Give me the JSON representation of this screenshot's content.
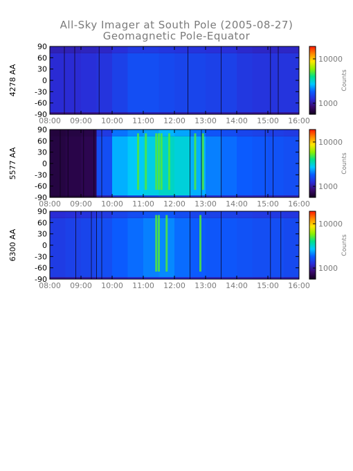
{
  "title": {
    "line1": "All-Sky Imager at South Pole (2005-08-27)",
    "line2": "Geomagnetic Pole-Equator"
  },
  "colors": {
    "axis_text": "#7a7a7a",
    "label_text": "#000000",
    "bar_stops": [
      "#14001e",
      "#3a0a6e",
      "#2a2cd6",
      "#0a5cff",
      "#00c8ff",
      "#00e08a",
      "#8cf000",
      "#ffe600",
      "#ff8a00",
      "#ff1a00"
    ]
  },
  "chart_data": [
    {
      "type": "heatmap",
      "ylabel": "4278 AA",
      "x_ticks": [
        "08:00",
        "09:00",
        "10:00",
        "11:00",
        "12:00",
        "13:00",
        "14:00",
        "15:00",
        "16:00"
      ],
      "y_ticks": [
        "90",
        "60",
        "30",
        "0",
        "-30",
        "-60",
        "-90"
      ],
      "xlim": [
        "08:00",
        "16:00"
      ],
      "ylim": [
        -90,
        90
      ],
      "colorbar": {
        "label": "Counts",
        "ticks": [
          "10000",
          "1000"
        ],
        "scale": "log"
      },
      "intensity": [
        0.22,
        0.22,
        0.23,
        0.24,
        0.27,
        0.3,
        0.3,
        0.29,
        0.28,
        0.28,
        0.27,
        0.27,
        0.25,
        0.24,
        0.24,
        0.24
      ],
      "dark_lines": [
        "08:28",
        "08:48",
        "09:35",
        "12:26",
        "13:30",
        "15:05",
        "15:20"
      ],
      "bright_streaks": []
    },
    {
      "type": "heatmap",
      "ylabel": "5577 AA",
      "x_ticks": [
        "08:00",
        "09:00",
        "10:00",
        "11:00",
        "12:00",
        "13:00",
        "14:00",
        "15:00",
        "16:00"
      ],
      "y_ticks": [
        "90",
        "60",
        "30",
        "0",
        "-30",
        "-60",
        "-90"
      ],
      "xlim": [
        "08:00",
        "16:00"
      ],
      "ylim": [
        -90,
        90
      ],
      "colorbar": {
        "label": "Counts",
        "ticks": [
          "10000",
          "1000"
        ],
        "scale": "log"
      },
      "intensity": [
        0.05,
        0.06,
        0.07,
        0.3,
        0.42,
        0.45,
        0.47,
        0.5,
        0.48,
        0.42,
        0.37,
        0.35,
        0.33,
        0.32,
        0.31,
        0.3
      ],
      "dark_lines": [
        "08:20",
        "08:35",
        "09:05",
        "09:25",
        "09:40",
        "12:30",
        "12:52",
        "13:30",
        "14:55",
        "15:10"
      ],
      "bright_streaks": [
        "10:50",
        "11:05",
        "11:25",
        "11:30",
        "11:35",
        "11:50",
        "12:40",
        "12:55"
      ]
    },
    {
      "type": "heatmap",
      "ylabel": "6300 AA",
      "x_ticks": [
        "08:00",
        "09:00",
        "10:00",
        "11:00",
        "12:00",
        "13:00",
        "14:00",
        "15:00",
        "16:00"
      ],
      "y_ticks": [
        "90",
        "60",
        "30",
        "0",
        "-30",
        "-60",
        "-90"
      ],
      "xlim": [
        "08:00",
        "16:00"
      ],
      "ylim": [
        -90,
        90
      ],
      "colorbar": {
        "label": "Counts",
        "ticks": [
          "10000",
          "1000"
        ],
        "scale": "log"
      },
      "intensity": [
        0.26,
        0.27,
        0.28,
        0.3,
        0.33,
        0.35,
        0.37,
        0.38,
        0.35,
        0.33,
        0.32,
        0.32,
        0.31,
        0.3,
        0.3,
        0.29
      ],
      "dark_lines": [
        "08:50",
        "09:20",
        "09:30",
        "09:40",
        "12:30",
        "13:30",
        "15:05",
        "15:25"
      ],
      "bright_streaks": [
        "11:25",
        "11:30",
        "11:45",
        "12:50"
      ]
    }
  ]
}
